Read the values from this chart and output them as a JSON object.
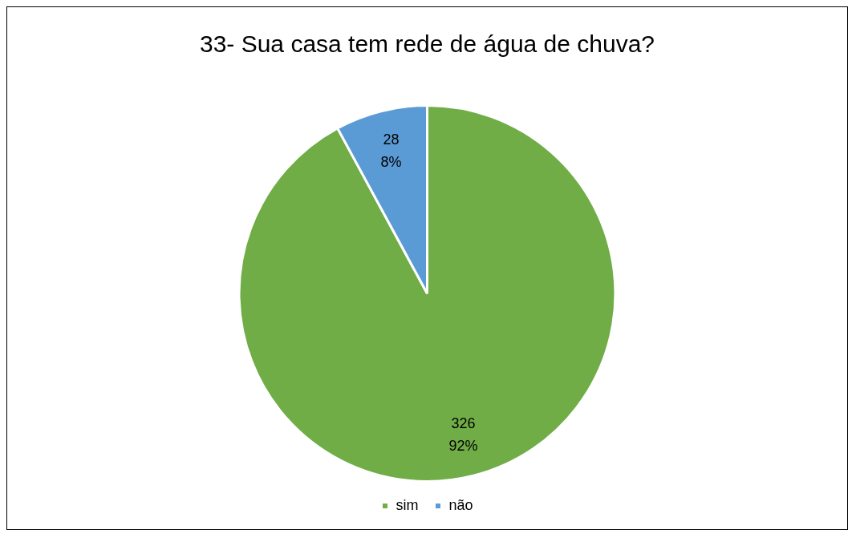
{
  "chart_data": {
    "type": "pie",
    "title": "33- Sua casa tem rede de água de chuva?",
    "categories": [
      "sim",
      "não"
    ],
    "values": [
      326,
      28
    ],
    "colors": [
      "#70ad47",
      "#5b9bd5"
    ],
    "value_labels": [
      "326\n92%",
      "28\n8%"
    ],
    "legend": "bottom"
  }
}
